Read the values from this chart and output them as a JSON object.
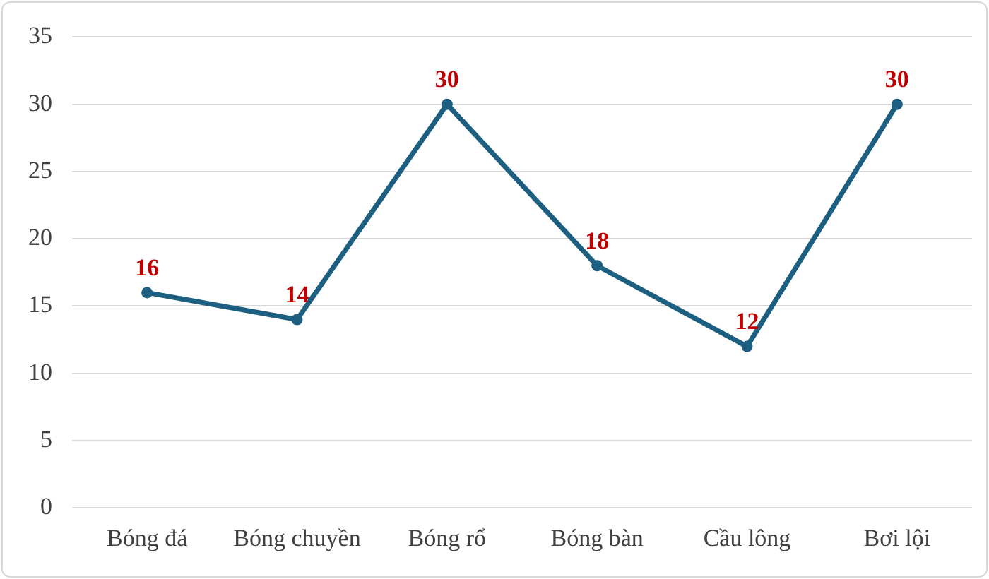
{
  "chart_data": {
    "type": "line",
    "categories": [
      "Bóng đá",
      "Bóng chuyền",
      "Bóng rổ",
      "Bóng bàn",
      "Cầu lông",
      "Bơi lội"
    ],
    "series": [
      {
        "color": "#1d5f80",
        "values": [
          16,
          14,
          30,
          18,
          12,
          30
        ]
      }
    ],
    "ylim": [
      0,
      35
    ],
    "yticks": [
      0,
      5,
      10,
      15,
      20,
      25,
      30,
      35
    ],
    "grid": "y",
    "legend": false,
    "marker": "circle",
    "data_labels": true
  }
}
